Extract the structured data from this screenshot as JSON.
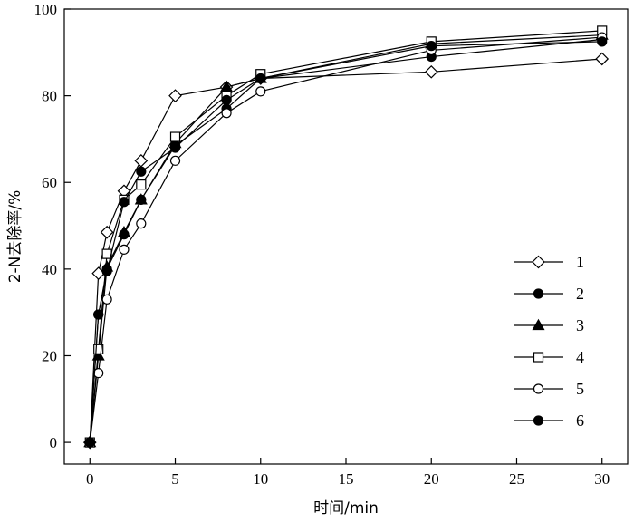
{
  "chart_data": {
    "type": "line",
    "xlabel": "时间/min",
    "ylabel": "2-N去除率/%",
    "xlim": [
      -1.5,
      31.5
    ],
    "ylim": [
      -5,
      100
    ],
    "xticks": [
      0,
      5,
      10,
      15,
      20,
      25,
      30
    ],
    "yticks": [
      0,
      20,
      40,
      60,
      80,
      100
    ],
    "legend_position": "right",
    "series": [
      {
        "name": "1",
        "marker": "diamond-open",
        "x": [
          0,
          0.5,
          1,
          2,
          3,
          5,
          8,
          10,
          20,
          30
        ],
        "y": [
          0,
          39,
          48.5,
          58,
          65,
          80,
          82,
          84,
          85.5,
          88.5
        ]
      },
      {
        "name": "2",
        "marker": "circle-filled",
        "x": [
          0,
          0.5,
          1,
          2,
          3,
          5,
          8,
          10,
          20,
          30
        ],
        "y": [
          0,
          29.5,
          40,
          48,
          56,
          68.5,
          77,
          84,
          89,
          93
        ]
      },
      {
        "name": "3",
        "marker": "triangle-filled",
        "x": [
          0,
          0.5,
          1,
          2,
          3,
          5,
          8,
          10,
          20,
          30
        ],
        "y": [
          0,
          20,
          40.5,
          48.5,
          56,
          69,
          82,
          84,
          92,
          94
        ]
      },
      {
        "name": "4",
        "marker": "square-open",
        "x": [
          0,
          0.5,
          1,
          2,
          3,
          5,
          8,
          10,
          20,
          30
        ],
        "y": [
          0,
          21.5,
          43.5,
          56,
          59.5,
          70.5,
          80,
          85,
          92.5,
          95
        ]
      },
      {
        "name": "5",
        "marker": "circle-open",
        "x": [
          0,
          0.5,
          1,
          2,
          3,
          5,
          8,
          10,
          20,
          30
        ],
        "y": [
          0,
          16,
          33,
          44.5,
          50.5,
          65,
          76,
          81,
          90.5,
          93.5
        ]
      },
      {
        "name": "6",
        "marker": "circle-filled",
        "x": [
          0,
          0.5,
          1,
          2,
          3,
          5,
          8,
          10,
          20,
          30
        ],
        "y": [
          0,
          29.5,
          39.5,
          55.5,
          62.5,
          68,
          79,
          84,
          91.5,
          92.5
        ]
      }
    ]
  }
}
